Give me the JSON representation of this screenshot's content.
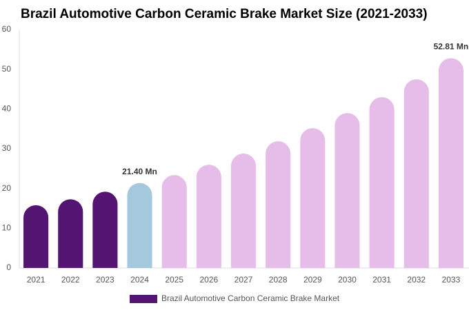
{
  "chart_data": {
    "type": "bar",
    "title": "Brazil Automotive Carbon Ceramic Brake Market Size (2021-2033)",
    "categories": [
      "2021",
      "2022",
      "2023",
      "2024",
      "2025",
      "2026",
      "2027",
      "2028",
      "2029",
      "2030",
      "2031",
      "2032",
      "2033"
    ],
    "series": [
      {
        "name": "Brazil Automotive Carbon Ceramic Brake Market",
        "color": "#541472",
        "colors": [
          "#541472",
          "#541472",
          "#541472",
          "#a4c8dc",
          "#e6bde8",
          "#e6bde8",
          "#e6bde8",
          "#e6bde8",
          "#e6bde8",
          "#e6bde8",
          "#e6bde8",
          "#e6bde8",
          "#e6bde8"
        ],
        "values": [
          15.8,
          17.3,
          19.2,
          21.4,
          23.4,
          26.0,
          28.8,
          31.9,
          35.2,
          39.0,
          43.0,
          47.5,
          52.81
        ],
        "value_labels": [
          null,
          null,
          null,
          "21.40 Mn",
          null,
          null,
          null,
          null,
          null,
          null,
          null,
          null,
          "52.81 Mn"
        ]
      }
    ],
    "ylim": [
      0,
      60
    ],
    "yticks": [
      0,
      10,
      20,
      30,
      40,
      50,
      60
    ],
    "grid": false
  }
}
